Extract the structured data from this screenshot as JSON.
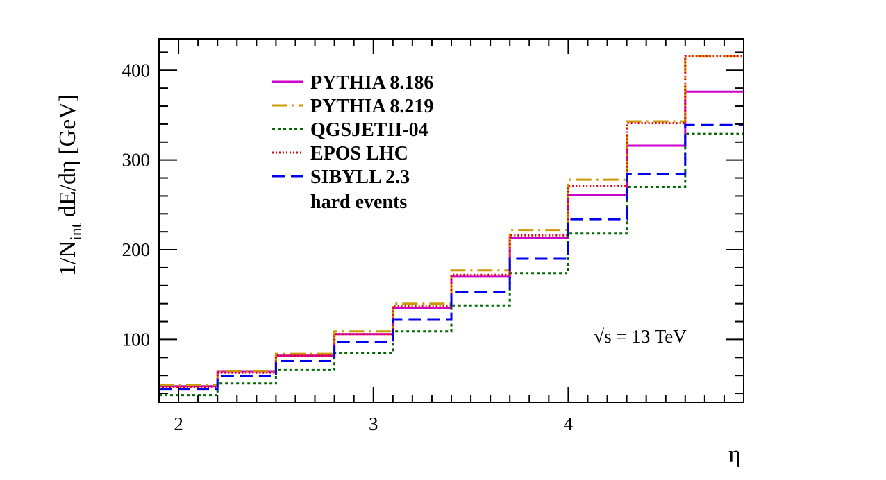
{
  "chart_data": {
    "type": "line",
    "step": true,
    "xlabel": "η",
    "ylabel_main": "1/N",
    "ylabel_sub": "int",
    "ylabel_rest": " dE/dη [GeV]",
    "xlim": [
      1.9,
      4.9
    ],
    "ylim": [
      30,
      435
    ],
    "x_ticks": [
      2,
      3,
      4
    ],
    "y_ticks": [
      100,
      200,
      300,
      400
    ],
    "bin_edges": [
      1.9,
      2.2,
      2.5,
      2.8,
      3.1,
      3.4,
      3.7,
      4.0,
      4.3,
      4.6,
      4.9
    ],
    "legend_placement": "top-left",
    "legend_extra": "hard events",
    "annotation": "√s = 13 TeV",
    "series": [
      {
        "name": "PYTHIA 8.186",
        "color": "#cc00cc",
        "dash": "solid",
        "values": [
          48,
          64,
          82,
          106,
          135,
          170,
          213,
          261,
          316,
          376
        ]
      },
      {
        "name": "PYTHIA 8.219",
        "color": "#cc9900",
        "dash": "dashdot",
        "values": [
          49,
          65,
          84,
          109,
          140,
          177,
          222,
          278,
          343,
          416
        ]
      },
      {
        "name": "QGSJETII-04",
        "color": "#006600",
        "dash": "dot",
        "values": [
          38,
          51,
          66,
          85,
          109,
          138,
          174,
          218,
          270,
          329
        ]
      },
      {
        "name": "EPOS LHC",
        "color": "#ee0000",
        "dash": "fine-dot",
        "values": [
          47,
          63,
          82,
          106,
          137,
          172,
          216,
          271,
          341,
          416
        ]
      },
      {
        "name": "SIBYLL 2.3",
        "color": "#0000ee",
        "dash": "dash",
        "values": [
          45,
          59,
          76,
          97,
          122,
          153,
          190,
          234,
          284,
          339
        ]
      }
    ]
  }
}
